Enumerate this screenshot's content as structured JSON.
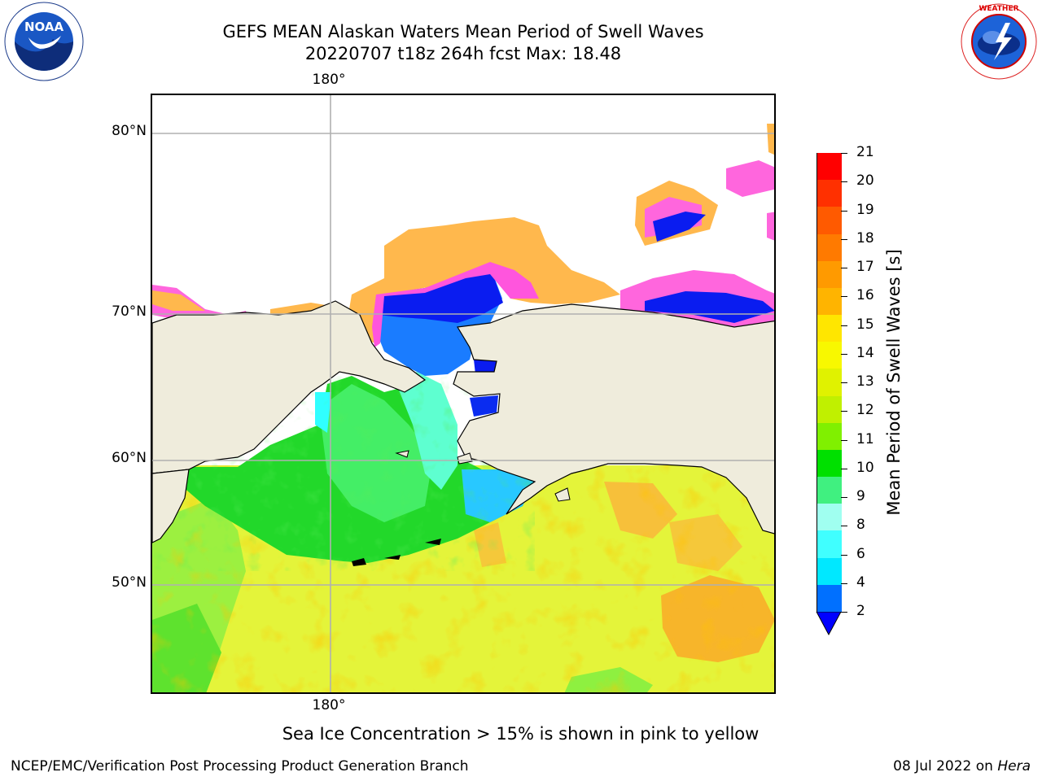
{
  "header": {
    "title_line1": "GEFS MEAN Alaskan Waters Mean Period of Swell Waves",
    "title_line2": "20220707 t18z 264h fcst   Max: 18.48"
  },
  "logos": {
    "left": {
      "icon": "noaa-logo-icon",
      "text": "NOAA",
      "ring_text": "NATIONAL OCEANIC AND ATMOSPHERIC ADMINISTRATION"
    },
    "right": {
      "icon": "nws-logo-icon",
      "ring_text": "NATIONAL WEATHER SERVICE"
    }
  },
  "map": {
    "lon_labels": {
      "top": "180°",
      "bottom": "180°"
    },
    "lat_labels": [
      "80°N",
      "70°N",
      "60°N",
      "50°N"
    ],
    "colors": {
      "land": "#efecdc",
      "coast": "#000000",
      "grid": "#b0b0b0",
      "ice_pink": "#ff66dd",
      "ice_orange": "#ffb84d"
    }
  },
  "colorbar": {
    "title": "Mean Period of Swell Waves [s]",
    "tick_labels": [
      "21",
      "20",
      "19",
      "18",
      "17",
      "16",
      "15",
      "14",
      "13",
      "12",
      "11",
      "10",
      "9",
      "8",
      "6",
      "4",
      "2"
    ],
    "segment_colors": [
      "#ff0000",
      "#ff3000",
      "#ff5a00",
      "#ff7a00",
      "#ff9a00",
      "#ffb400",
      "#ffe600",
      "#f8f800",
      "#e0f200",
      "#c0f000",
      "#80f000",
      "#00e000",
      "#40f080",
      "#a0fff0",
      "#40ffff",
      "#00e8ff",
      "#0070ff"
    ],
    "extend_color": "#0000ff"
  },
  "footer": {
    "note": "Sea Ice Concentration > 15% is shown in pink to yellow",
    "left": "NCEP/EMC/Verification Post Processing Product Generation Branch",
    "right_prefix": "08 Jul 2022 on",
    "right_machine": "Hera"
  }
}
